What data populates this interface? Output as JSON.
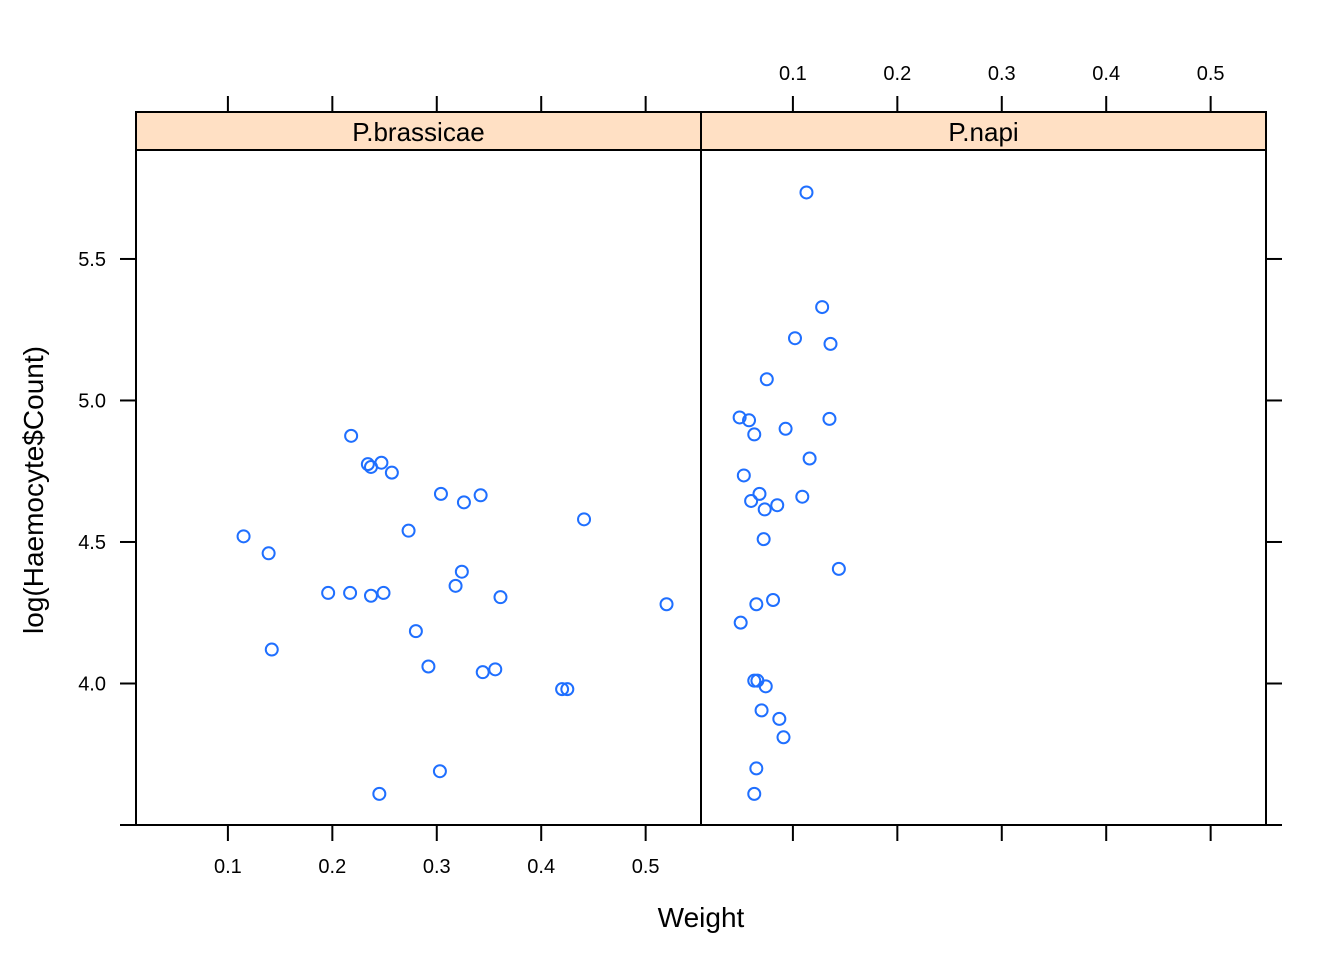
{
  "chart_data": {
    "type": "scatter",
    "xlabel": "Weight",
    "ylabel": "log(Haemocyte$Count)",
    "xlim": [
      0.012,
      0.553
    ],
    "ylim": [
      3.5,
      5.885
    ],
    "x_ticks": [
      0.1,
      0.2,
      0.3,
      0.4,
      0.5
    ],
    "x_tick_labels": [
      "0.1",
      "0.2",
      "0.3",
      "0.4",
      "0.5"
    ],
    "y_ticks": [
      4.0,
      4.5,
      5.0,
      5.5
    ],
    "y_tick_labels": [
      "4.0",
      "4.5",
      "5.0",
      "5.5"
    ],
    "series_color": "#1f6fff",
    "strip_color": "#ffe0c4",
    "panels": [
      {
        "name": "P.brassicae",
        "points": [
          {
            "x": 0.115,
            "y": 4.52
          },
          {
            "x": 0.139,
            "y": 4.46
          },
          {
            "x": 0.142,
            "y": 4.12
          },
          {
            "x": 0.196,
            "y": 4.32
          },
          {
            "x": 0.217,
            "y": 4.32
          },
          {
            "x": 0.218,
            "y": 4.875
          },
          {
            "x": 0.234,
            "y": 4.775
          },
          {
            "x": 0.237,
            "y": 4.765
          },
          {
            "x": 0.237,
            "y": 4.31
          },
          {
            "x": 0.245,
            "y": 3.61
          },
          {
            "x": 0.247,
            "y": 4.78
          },
          {
            "x": 0.249,
            "y": 4.32
          },
          {
            "x": 0.257,
            "y": 4.745
          },
          {
            "x": 0.273,
            "y": 4.54
          },
          {
            "x": 0.28,
            "y": 4.185
          },
          {
            "x": 0.292,
            "y": 4.06
          },
          {
            "x": 0.303,
            "y": 3.69
          },
          {
            "x": 0.304,
            "y": 4.67
          },
          {
            "x": 0.318,
            "y": 4.345
          },
          {
            "x": 0.324,
            "y": 4.395
          },
          {
            "x": 0.326,
            "y": 4.64
          },
          {
            "x": 0.342,
            "y": 4.665
          },
          {
            "x": 0.344,
            "y": 4.04
          },
          {
            "x": 0.356,
            "y": 4.05
          },
          {
            "x": 0.361,
            "y": 4.305
          },
          {
            "x": 0.42,
            "y": 3.98
          },
          {
            "x": 0.425,
            "y": 3.98
          },
          {
            "x": 0.441,
            "y": 4.58
          },
          {
            "x": 0.52,
            "y": 4.28
          }
        ]
      },
      {
        "name": "P.napi",
        "points": [
          {
            "x": 0.113,
            "y": 5.735
          },
          {
            "x": 0.128,
            "y": 5.33
          },
          {
            "x": 0.102,
            "y": 5.22
          },
          {
            "x": 0.136,
            "y": 5.2
          },
          {
            "x": 0.075,
            "y": 5.075
          },
          {
            "x": 0.049,
            "y": 4.94
          },
          {
            "x": 0.058,
            "y": 4.93
          },
          {
            "x": 0.135,
            "y": 4.935
          },
          {
            "x": 0.093,
            "y": 4.9
          },
          {
            "x": 0.063,
            "y": 4.88
          },
          {
            "x": 0.116,
            "y": 4.795
          },
          {
            "x": 0.053,
            "y": 4.735
          },
          {
            "x": 0.068,
            "y": 4.67
          },
          {
            "x": 0.109,
            "y": 4.66
          },
          {
            "x": 0.06,
            "y": 4.645
          },
          {
            "x": 0.085,
            "y": 4.63
          },
          {
            "x": 0.073,
            "y": 4.615
          },
          {
            "x": 0.072,
            "y": 4.51
          },
          {
            "x": 0.144,
            "y": 4.405
          },
          {
            "x": 0.081,
            "y": 4.295
          },
          {
            "x": 0.065,
            "y": 4.28
          },
          {
            "x": 0.05,
            "y": 4.215
          },
          {
            "x": 0.063,
            "y": 4.01
          },
          {
            "x": 0.066,
            "y": 4.01
          },
          {
            "x": 0.074,
            "y": 3.99
          },
          {
            "x": 0.07,
            "y": 3.905
          },
          {
            "x": 0.087,
            "y": 3.875
          },
          {
            "x": 0.091,
            "y": 3.81
          },
          {
            "x": 0.065,
            "y": 3.7
          },
          {
            "x": 0.063,
            "y": 3.61
          }
        ]
      }
    ]
  }
}
